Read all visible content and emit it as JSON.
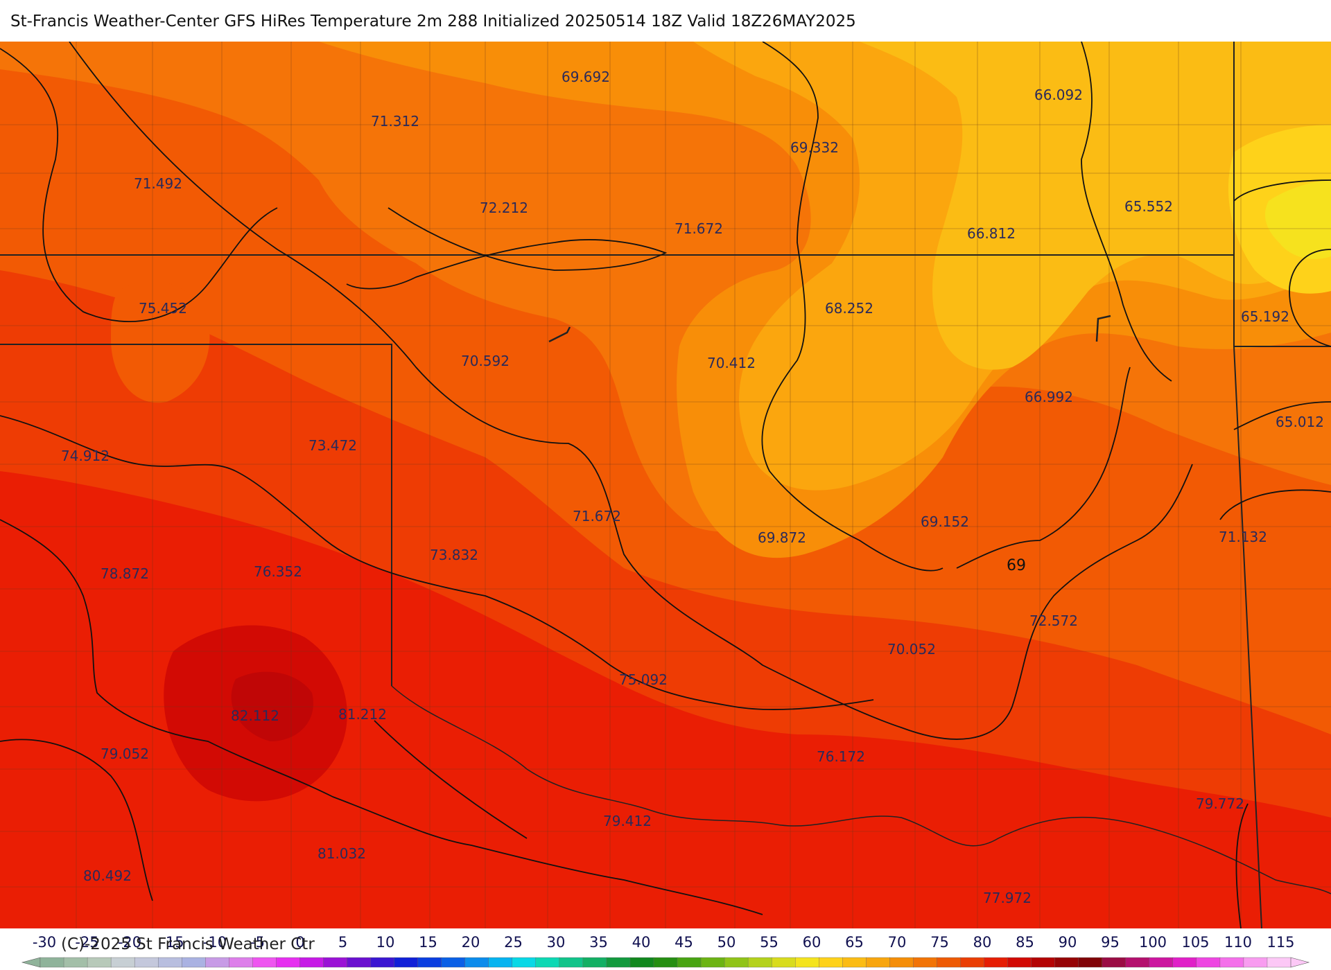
{
  "title": "St-Francis Weather-Center GFS HiRes Temperature 2m  288 Initialized 20250514 18Z Valid 18Z26MAY2025",
  "copyright": "(C)-2025 St Francis Weather Ctr",
  "contour_label": "69",
  "temperature_labels": [
    {
      "text": "69.692"
    },
    {
      "text": "71.312"
    },
    {
      "text": "69.332"
    },
    {
      "text": "66.092"
    },
    {
      "text": "71.492"
    },
    {
      "text": "72.212"
    },
    {
      "text": "71.672"
    },
    {
      "text": "66.812"
    },
    {
      "text": "65.552"
    },
    {
      "text": "75.452"
    },
    {
      "text": "68.252"
    },
    {
      "text": "65.192"
    },
    {
      "text": "70.592"
    },
    {
      "text": "70.412"
    },
    {
      "text": "66.992"
    },
    {
      "text": "65.012"
    },
    {
      "text": "74.912"
    },
    {
      "text": "73.472"
    },
    {
      "text": "71.672"
    },
    {
      "text": "69.872"
    },
    {
      "text": "69.152"
    },
    {
      "text": "71.132"
    },
    {
      "text": "73.832"
    },
    {
      "text": "78.872"
    },
    {
      "text": "76.352"
    },
    {
      "text": "72.572"
    },
    {
      "text": "70.052"
    },
    {
      "text": "75.092"
    },
    {
      "text": "82.112"
    },
    {
      "text": "81.212"
    },
    {
      "text": "79.052"
    },
    {
      "text": "76.172"
    },
    {
      "text": "79.772"
    },
    {
      "text": "79.412"
    },
    {
      "text": "81.032"
    },
    {
      "text": "80.492"
    },
    {
      "text": "77.972"
    }
  ],
  "colorbar": {
    "ticks": [
      "-30",
      "-25",
      "-20",
      "-15",
      "-10",
      "-5",
      "0",
      "5",
      "10",
      "15",
      "20",
      "25",
      "30",
      "35",
      "40",
      "45",
      "50",
      "55",
      "60",
      "65",
      "70",
      "75",
      "80",
      "85",
      "90",
      "95",
      "100",
      "105",
      "110",
      "115"
    ],
    "colors": [
      "#8fb39a",
      "#a3bfa8",
      "#b7c9b9",
      "#c7cfd4",
      "#c4c8dc",
      "#b8bedf",
      "#aab2e2",
      "#c79be6",
      "#dd7fea",
      "#ee55f0",
      "#e62ff0",
      "#c61ae6",
      "#9a12d6",
      "#6a10d0",
      "#3a16d2",
      "#1020d8",
      "#0a3ee0",
      "#0a60e6",
      "#0b8cec",
      "#06b4f0",
      "#08d8e6",
      "#0cd8b4",
      "#10c48a",
      "#12b064",
      "#129a3e",
      "#11881e",
      "#258f12",
      "#48a412",
      "#6cb414",
      "#90c418",
      "#b4d21c",
      "#d8dc1e",
      "#f4e41e",
      "#fed21a",
      "#fbbc14",
      "#f8a60e",
      "#f58e08",
      "#f27406",
      "#ee5a04",
      "#ea3e04",
      "#e61e04",
      "#d20a04",
      "#b40404",
      "#960406",
      "#800408",
      "#9a0c44",
      "#b4106e",
      "#cc16a0",
      "#e020c8",
      "#ee46e2",
      "#f470ea",
      "#f89cf0",
      "#fcc8f6"
    ]
  }
}
